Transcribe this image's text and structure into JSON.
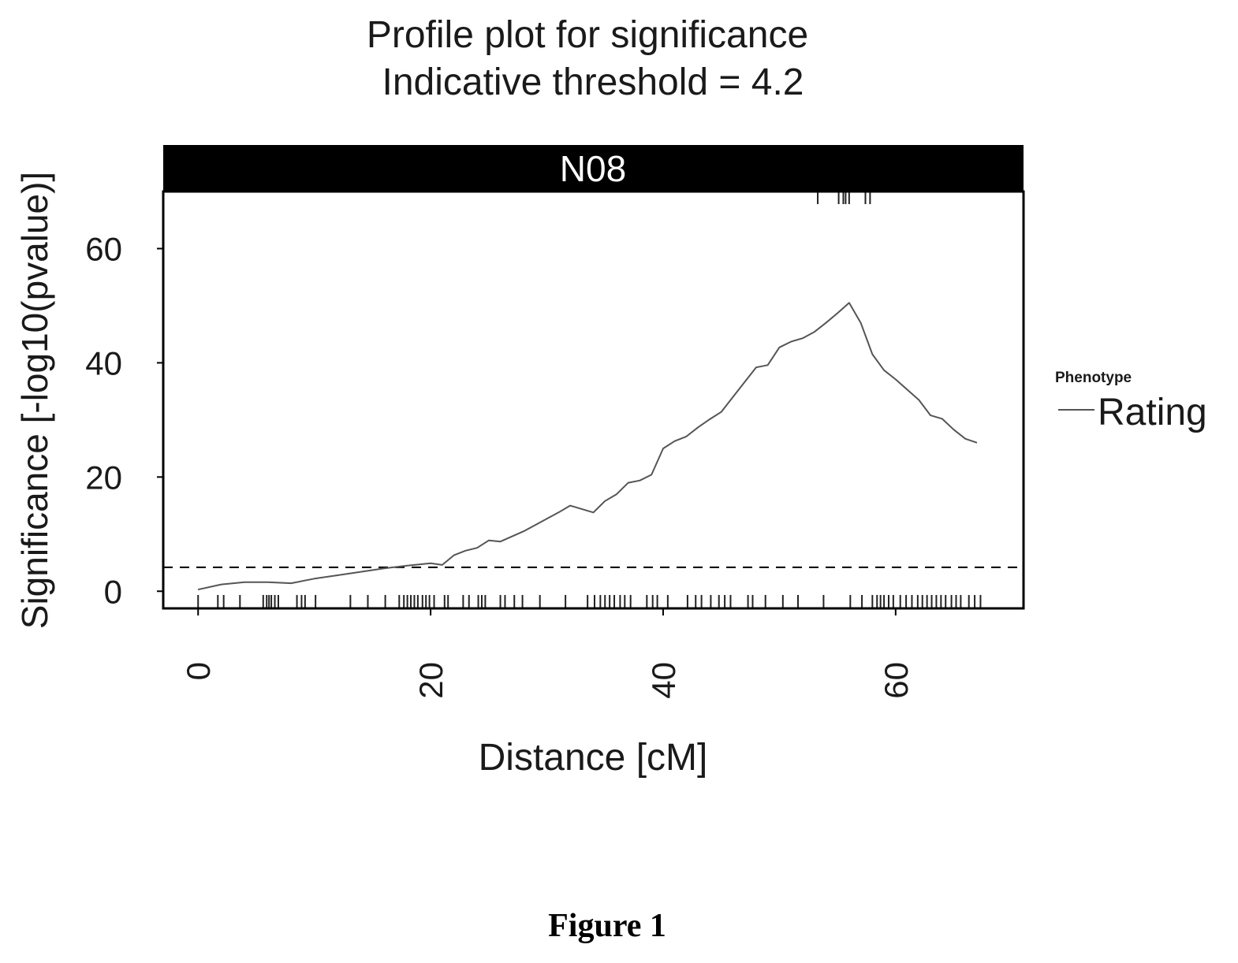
{
  "chart_data": {
    "type": "line",
    "title_line1": "Profile plot for significance",
    "title_line2": "Indicative threshold = 4.2",
    "panel_label": "N08",
    "xlabel": "Distance [cM]",
    "ylabel": "Significance [-log10(pvalue)]",
    "xlim": [
      -3,
      71
    ],
    "ylim": [
      -3,
      70
    ],
    "x_ticks": [
      0,
      20,
      40,
      60
    ],
    "y_ticks": [
      0,
      20,
      40,
      60
    ],
    "threshold": 4.2,
    "threshold_style": "dashed",
    "legend_title": "Phenotype",
    "legend_position": "right",
    "series": [
      {
        "name": "Rating",
        "color": "#555555",
        "x": [
          0,
          2,
          4,
          6,
          8,
          10,
          12,
          14,
          16,
          18,
          20,
          21,
          22,
          23,
          24,
          25,
          26,
          27,
          28,
          29,
          30,
          31,
          32,
          33,
          34,
          35,
          36,
          37,
          38,
          39,
          40,
          41,
          42,
          43,
          44,
          45,
          46,
          47,
          48,
          49,
          50,
          51,
          52,
          53,
          54,
          55,
          56,
          57,
          58,
          59,
          60,
          61,
          62,
          63,
          64,
          65,
          66,
          67
        ],
        "y": [
          0.3,
          1.2,
          1.6,
          1.6,
          1.4,
          2.2,
          2.8,
          3.4,
          4,
          4.5,
          4.9,
          4.6,
          6.3,
          7.1,
          7.6,
          8.9,
          8.7,
          9.6,
          10.5,
          11.6,
          12.7,
          13.8,
          15,
          14.4,
          13.8,
          15.8,
          17,
          19,
          19.4,
          20.4,
          25,
          26.3,
          27.1,
          28.7,
          30.1,
          31.4,
          34,
          36.6,
          39.2,
          39.6,
          42.7,
          43.7,
          44.3,
          45.4,
          47,
          48.7,
          50.5,
          47,
          41.5,
          38.7,
          37.1,
          35.3,
          33.5,
          30.8,
          30.2,
          28.3,
          26.7,
          26.0
        ]
      }
    ],
    "marker_ticks_bottom": [
      0,
      1.7,
      2.2,
      3.6,
      5.6,
      5.9,
      6.1,
      6.3,
      6.6,
      6.9,
      8.5,
      8.9,
      9.2,
      10.1,
      13.1,
      14.6,
      16.1,
      17.3,
      17.7,
      18,
      18.3,
      18.6,
      18.9,
      19.3,
      19.6,
      19.9,
      20.3,
      21.2,
      21.5,
      22.8,
      23.3,
      24.1,
      24.4,
      24.7,
      26,
      26.4,
      27.2,
      27.9,
      29.4,
      31.6,
      33.5,
      34.1,
      34.6,
      35,
      35.4,
      35.8,
      36.3,
      36.7,
      37.2,
      38.6,
      39.1,
      39.5,
      40.4,
      42.1,
      42.8,
      43.3,
      44.1,
      44.8,
      45.3,
      45.8,
      47.3,
      47.7,
      48.8,
      50.3,
      51.6,
      53.8,
      56.1,
      57.1,
      58,
      58.4,
      58.7,
      59,
      59.4,
      59.8,
      60.4,
      60.9,
      61.4,
      61.9,
      62.3,
      62.7,
      63.1,
      63.5,
      63.9,
      64.3,
      64.8,
      65.2,
      65.6,
      66.3,
      66.8,
      67.3
    ],
    "marker_ticks_top": [
      53.3,
      55.1,
      55.5,
      55.7,
      56,
      57.4,
      57.8
    ]
  },
  "caption": "Figure 1"
}
